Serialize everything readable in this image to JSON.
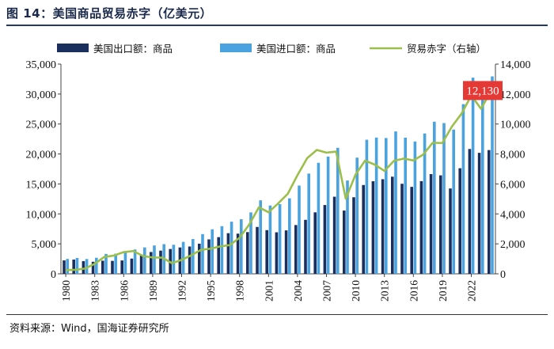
{
  "figure_title": "图 14：美国商品贸易赤字（亿美元）",
  "source": "资料来源：Wind，国海证券研究所",
  "colors": {
    "exports": "#1b2f5e",
    "imports": "#4aa3df",
    "deficit": "#9bbf4a",
    "callout": "#e53935",
    "title_rule": "#1f3a6b"
  },
  "chart_data": {
    "type": "bar+line",
    "categories": [
      "1980",
      "1981",
      "1982",
      "1983",
      "1984",
      "1985",
      "1986",
      "1987",
      "1988",
      "1989",
      "1990",
      "1991",
      "1992",
      "1993",
      "1994",
      "1995",
      "1996",
      "1997",
      "1998",
      "1999",
      "2000",
      "2001",
      "2002",
      "2003",
      "2004",
      "2005",
      "2006",
      "2007",
      "2008",
      "2009",
      "2010",
      "2011",
      "2012",
      "2013",
      "2014",
      "2015",
      "2016",
      "2017",
      "2018",
      "2019",
      "2020",
      "2021",
      "2022",
      "2023",
      "2024"
    ],
    "x_tick_labels": [
      "1980",
      "1983",
      "1986",
      "1989",
      "1992",
      "1995",
      "1998",
      "2001",
      "2004",
      "2007",
      "2010",
      "2013",
      "2016",
      "2019",
      "2022"
    ],
    "series": [
      {
        "name": "美国出口额：商品",
        "type": "bar",
        "axis": "left",
        "values": [
          2240,
          2380,
          2120,
          2010,
          2190,
          2160,
          2230,
          2540,
          3220,
          3640,
          3870,
          4140,
          4400,
          4560,
          5030,
          5750,
          6120,
          6780,
          6700,
          6960,
          7820,
          7290,
          6930,
          7250,
          8140,
          9010,
          10260,
          11480,
          12870,
          10560,
          12780,
          14820,
          15450,
          15790,
          16210,
          15030,
          14510,
          15470,
          16640,
          16430,
          14240,
          17620,
          20830,
          20190,
          20650
        ]
      },
      {
        "name": "美国进口额：商品",
        "type": "bar",
        "axis": "left",
        "values": [
          2490,
          2650,
          2470,
          2680,
          3320,
          3360,
          3650,
          4060,
          4410,
          4730,
          4950,
          4850,
          5330,
          5800,
          6630,
          7430,
          7950,
          8700,
          9110,
          10250,
          12260,
          11400,
          11630,
          12600,
          14730,
          16730,
          18530,
          19570,
          21030,
          15570,
          19390,
          22380,
          22740,
          22660,
          23760,
          22720,
          22080,
          23420,
          25390,
          25160,
          24080,
          28320,
          32740,
          31210,
          32950
        ]
      },
      {
        "name": "贸易赤字（右轴）",
        "type": "line",
        "axis": "right",
        "values": [
          250,
          270,
          350,
          670,
          1130,
          1220,
          1450,
          1520,
          1190,
          1090,
          1080,
          710,
          930,
          1240,
          1600,
          1680,
          1830,
          1920,
          2410,
          3290,
          4440,
          4110,
          4700,
          5350,
          6590,
          7720,
          8270,
          8090,
          8160,
          5010,
          6610,
          7560,
          7290,
          6870,
          7550,
          7690,
          7570,
          7950,
          8750,
          8730,
          9840,
          10700,
          11910,
          11020,
          12130
        ]
      }
    ],
    "left_axis": {
      "min": 0,
      "max": 35000,
      "ticks": [
        "0",
        "5,000",
        "10,000",
        "15,000",
        "20,000",
        "25,000",
        "30,000",
        "35,000"
      ]
    },
    "right_axis": {
      "min": 0,
      "max": 14000,
      "ticks": [
        "0",
        "2,000",
        "4,000",
        "6,000",
        "8,000",
        "10,000",
        "12,000",
        "14,000"
      ]
    },
    "annotation": {
      "text": "12,130",
      "category": "2024",
      "series": "贸易赤字（右轴）"
    },
    "legend_position": "top"
  }
}
